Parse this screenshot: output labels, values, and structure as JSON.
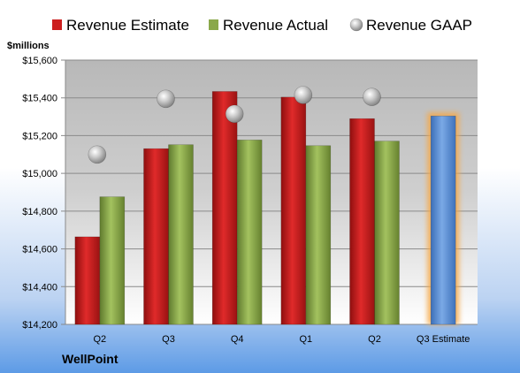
{
  "chart_data": {
    "type": "bar",
    "unit_label": "$millions",
    "company": "WellPoint",
    "categories": [
      "Q2",
      "Q3",
      "Q4",
      "Q1",
      "Q2",
      "Q3 Estimate"
    ],
    "series": [
      {
        "name": "Revenue Estimate",
        "kind": "bar",
        "color": "#cc1f1f",
        "values": [
          14664,
          15131,
          15434,
          15404,
          15290,
          null
        ]
      },
      {
        "name": "Revenue Actual",
        "kind": "bar",
        "color": "#8aa84a",
        "values": [
          14876,
          15152,
          15177,
          15147,
          15171,
          null
        ]
      },
      {
        "name": "Revenue GAAP",
        "kind": "point",
        "color": "#a6a6a6",
        "values": [
          15100,
          15395,
          15315,
          15415,
          15405,
          null
        ]
      }
    ],
    "highlight": {
      "name": "Q3 Estimate",
      "value": 15304,
      "color": "#5b8fd6",
      "glow": "#f5a94a"
    },
    "ylim": [
      14200,
      15600
    ],
    "yticks": [
      14200,
      14400,
      14600,
      14800,
      15000,
      15200,
      15400,
      15600
    ],
    "ytick_labels": [
      "$14,200",
      "$14,400",
      "$14,600",
      "$14,800",
      "$15,000",
      "$15,200",
      "$15,400",
      "$15,600"
    ],
    "legend_position": "top",
    "grid": true
  }
}
